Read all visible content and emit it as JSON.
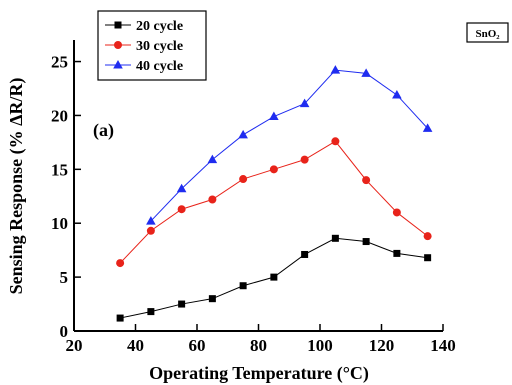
{
  "chart_data": {
    "type": "line",
    "xlabel": "Operating Temperature (°C)",
    "ylabel": "Sensing Response (% ΔR/R)",
    "panel_label": "(a)",
    "material_label": "SnO₂",
    "xlim": [
      20,
      140
    ],
    "ylim": [
      0,
      27
    ],
    "xticks": [
      20,
      40,
      60,
      80,
      100,
      120,
      140
    ],
    "yticks": [
      0,
      5,
      10,
      15,
      20,
      25
    ],
    "grid": false,
    "legend_position": "top-left",
    "series": [
      {
        "name": "20 cycle",
        "color": "#000000",
        "marker": "square",
        "x": [
          35,
          45,
          55,
          65,
          75,
          85,
          95,
          105,
          115,
          125,
          135
        ],
        "y": [
          1.2,
          1.8,
          2.5,
          3.0,
          4.2,
          5.0,
          7.1,
          8.6,
          8.3,
          7.2,
          6.8
        ]
      },
      {
        "name": "30 cycle",
        "color": "#e8231a",
        "marker": "circle",
        "x": [
          35,
          45,
          55,
          65,
          75,
          85,
          95,
          105,
          115,
          125,
          135
        ],
        "y": [
          6.3,
          9.3,
          11.3,
          12.2,
          14.1,
          15.0,
          15.9,
          17.6,
          14.0,
          11.0,
          8.8
        ]
      },
      {
        "name": "40 cycle",
        "color": "#1f2cf0",
        "marker": "triangle",
        "x": [
          45,
          55,
          65,
          75,
          85,
          95,
          105,
          115,
          125,
          135
        ],
        "y": [
          10.2,
          13.2,
          15.9,
          18.2,
          19.9,
          21.1,
          24.2,
          23.9,
          21.9,
          18.8
        ]
      }
    ]
  }
}
